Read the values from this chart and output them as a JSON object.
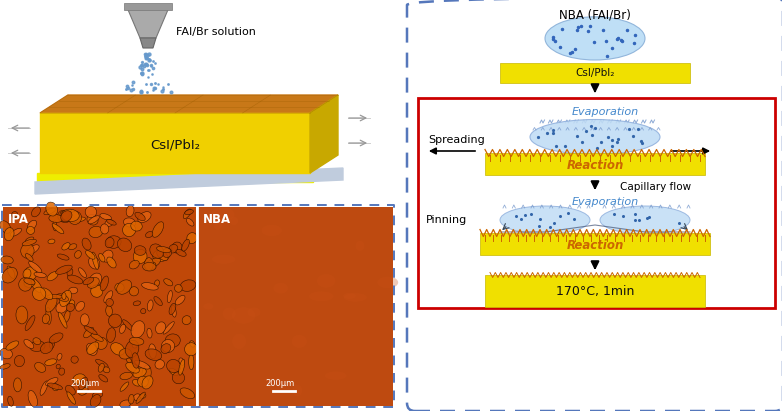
{
  "fig_width": 7.82,
  "fig_height": 4.11,
  "bg_color": "#ffffff",
  "spray_label": "FAI/Br solution",
  "layer1_label": "CsI/PbI₂",
  "nba_label": "NBA (FAI/Br)",
  "csipbi2_label": "CsI/PbI₂",
  "evaporation_label": "Evaporation",
  "spreading_label": "Spreading",
  "reaction_label1": "Reaction",
  "capillary_label": "Capillary flow",
  "pinning_label": "Pinning",
  "evaporation_label2": "Evaporation",
  "reaction_label2": "Reaction",
  "temp_label": "170°C, 1min",
  "ipa_label": "IPA",
  "nba_label2": "NBA",
  "scalebar_label": "200μm",
  "dashed_blue": "#5577bb",
  "red_box": "#cc0000",
  "reaction_text_color": "#cc6600",
  "evap_text_color": "#4488cc",
  "black": "#000000",
  "white": "#ffffff"
}
